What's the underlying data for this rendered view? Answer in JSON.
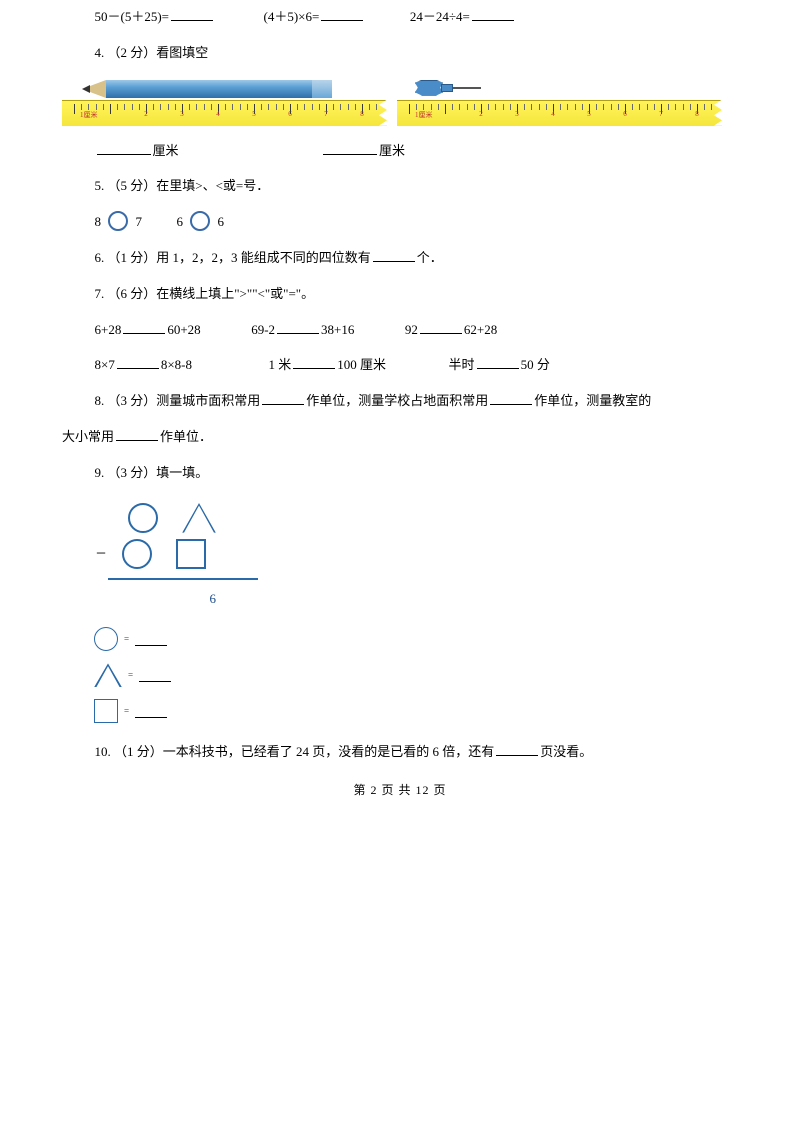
{
  "q3": {
    "a": "50－(5＋25)=",
    "b": "(4＋5)×6=",
    "c": "24－24÷4="
  },
  "q4": {
    "title": "4. （2 分）看图填空",
    "label_a": "厘米",
    "label_b": "厘米",
    "ruler": {
      "bg_colors": [
        "#fff35a",
        "#f5e63c"
      ],
      "tick_count": 8,
      "pencil_color": "#5a9fd4",
      "pin_color": "#4a8cc8"
    }
  },
  "q5": {
    "title": "5. （5 分）在里填>、<或=号．",
    "a_left": "8",
    "a_right": "7",
    "b_left": "6",
    "b_right": "6"
  },
  "q6": {
    "text_a": "6. （1 分）用 1，2，2，3 能组成不同的四位数有",
    "text_b": "个．"
  },
  "q7": {
    "title": "7. （6 分）在横线上填上\">\"\"<\"或\"=\"。",
    "r1": {
      "a1": "6+28",
      "a2": "60+28",
      "b1": "69-2",
      "b2": "38+16",
      "c1": "92",
      "c2": "62+28"
    },
    "r2": {
      "a1": "8×7",
      "a2": "8×8-8",
      "b1": "1 米",
      "b2": "100 厘米",
      "c1": "半时",
      "c2": "50 分"
    }
  },
  "q8": {
    "a": "8. （3 分）测量城市面积常用",
    "b": "作单位，测量学校占地面积常用",
    "c": "作单位，测量教室的",
    "d": "大小常用",
    "e": "作单位．"
  },
  "q9": {
    "title": "9. （3 分）填一填。",
    "result": "6"
  },
  "q10": {
    "a": "10. （1 分）一本科技书，已经看了 24 页，没看的是已看的 6 倍，还有",
    "b": "页没看。"
  },
  "footer": "第 2 页 共 12 页",
  "colors": {
    "text": "#000000",
    "shape_border": "#2a6aa8",
    "yellow": "#f5e63c"
  }
}
